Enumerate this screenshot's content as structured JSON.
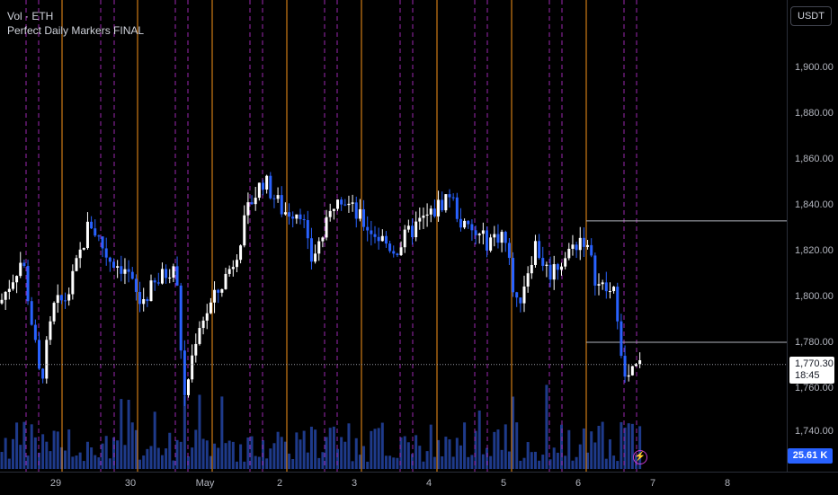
{
  "legend": {
    "line1": "Vol · ETH",
    "line2": "Perfect Daily Markers FINAL"
  },
  "price_scale": {
    "currency": "USDT",
    "ticks": [
      "1,900.00",
      "1,880.00",
      "1,860.00",
      "1,840.00",
      "1,820.00",
      "1,800.00",
      "1,780.00",
      "1,760.00",
      "1,740.00"
    ],
    "last_price": "1,770.30",
    "countdown": "18:45",
    "volume_label": "25.61 K"
  },
  "time_scale": {
    "labels": [
      "29",
      "30",
      "May",
      "2",
      "3",
      "4",
      "5",
      "6",
      "7",
      "8"
    ]
  },
  "icons": {
    "bolt": "lightning-icon"
  },
  "colors": {
    "up": "#ffffff",
    "down": "#2962ff",
    "day_marker": "#f7931a",
    "session_marker": "#9c27b0",
    "volume": "#1e3a8a"
  },
  "chart_data": {
    "type": "candlestick",
    "symbol": "ETH",
    "quote": "USDT",
    "y_range": [
      1731,
      1905
    ],
    "last_price": 1770.3,
    "levels": [
      1833,
      1780
    ],
    "day_markers": [
      "29",
      "30",
      "May",
      "2",
      "3",
      "4",
      "5",
      "6"
    ],
    "seed_open": 1797
  }
}
